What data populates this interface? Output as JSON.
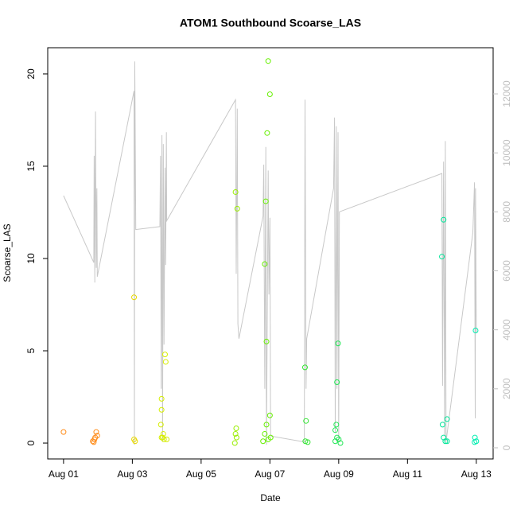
{
  "chart_data": {
    "type": "scatter",
    "title": "ATOM1 Southbound Scoarse_LAS",
    "xlabel": "Date",
    "ylabel": "Scoarse_LAS",
    "xlim": [
      0.54,
      13.49
    ],
    "ylim": [
      -0.86,
      21.42
    ],
    "y2lim": [
      -378,
      13565
    ],
    "xticks": [
      {
        "value": 1,
        "label": "Aug 01"
      },
      {
        "value": 3,
        "label": "Aug 03"
      },
      {
        "value": 5,
        "label": "Aug 05"
      },
      {
        "value": 7,
        "label": "Aug 07"
      },
      {
        "value": 9,
        "label": "Aug 09"
      },
      {
        "value": 11,
        "label": "Aug 11"
      },
      {
        "value": 13,
        "label": "Aug 13"
      }
    ],
    "yticks": [
      0,
      5,
      10,
      15,
      20
    ],
    "y2ticks": [
      0,
      2000,
      4000,
      6000,
      8000,
      10000,
      12000
    ],
    "series": [
      {
        "type": "line",
        "axis": "y2",
        "color": "#c8c8c8",
        "x": [
          1.0,
          1.88,
          1.89,
          1.91,
          1.93,
          1.95,
          1.97,
          1.98,
          3.05,
          3.06,
          3.07,
          3.08,
          3.1,
          3.8,
          3.82,
          3.84,
          3.86,
          3.88,
          3.9,
          3.92,
          3.95,
          3.97,
          3.99,
          4.0,
          6.0,
          6.02,
          6.05,
          6.07,
          6.1,
          6.8,
          6.82,
          6.85,
          6.88,
          6.9,
          6.95,
          6.97,
          7.0,
          7.02,
          8.0,
          8.02,
          8.05,
          8.07,
          8.85,
          8.88,
          8.9,
          8.93,
          8.95,
          8.98,
          9.0,
          9.02,
          12.0,
          12.02,
          12.05,
          12.08,
          12.1,
          12.12,
          12.9,
          12.95,
          12.97,
          12.98,
          13.0
        ],
        "values": [
          8550,
          6280,
          9900,
          5600,
          11400,
          6100,
          8800,
          5800,
          12100,
          100,
          13100,
          11600,
          7400,
          7500,
          9900,
          2000,
          10600,
          200,
          10300,
          3500,
          9500,
          6200,
          10700,
          7700,
          11800,
          5900,
          11500,
          4200,
          3700,
          7850,
          9600,
          2000,
          10200,
          100,
          9400,
          5200,
          7800,
          400,
          200,
          11800,
          2000,
          3700,
          8800,
          11200,
          500,
          10900,
          2000,
          10700,
          200,
          8000,
          9300,
          2100,
          9700,
          400,
          10400,
          200,
          7300,
          9000,
          1000,
          8800,
          3900
        ]
      },
      {
        "color": "#ff8c1a",
        "x": [
          1.0,
          1.85,
          1.9,
          1.92,
          1.95,
          1.98,
          1.88
        ],
        "values": [
          0.6,
          0.1,
          0.2,
          0.3,
          0.6,
          0.4,
          0.05
        ]
      },
      {
        "color": "#e8d800",
        "x": [
          3.05,
          3.05,
          3.08
        ],
        "values": [
          7.9,
          0.2,
          0.1
        ]
      },
      {
        "color": "#d6ee00",
        "x": [
          3.85,
          3.85,
          3.83,
          3.9,
          3.95,
          3.97,
          3.88,
          3.92,
          4.0,
          3.85
        ],
        "values": [
          2.4,
          1.8,
          1.0,
          0.5,
          4.8,
          4.4,
          0.3,
          0.2,
          0.2,
          0.3
        ]
      },
      {
        "color": "#99ee00",
        "x": [
          6.0,
          6.05,
          6.02,
          6.0,
          6.03,
          5.98
        ],
        "values": [
          13.6,
          12.7,
          0.8,
          0.5,
          0.3,
          0.0
        ]
      },
      {
        "color": "#66f000",
        "x": [
          6.95,
          7.0,
          6.92,
          6.88,
          6.85,
          6.9,
          7.0,
          6.9,
          6.85,
          6.95,
          7.02,
          6.8
        ],
        "values": [
          20.7,
          18.9,
          16.8,
          13.1,
          9.7,
          5.5,
          1.5,
          1.0,
          0.5,
          0.2,
          0.3,
          0.1
        ]
      },
      {
        "color": "#33e633",
        "x": [
          8.02,
          8.05,
          8.03,
          8.1
        ],
        "values": [
          4.1,
          1.2,
          0.1,
          0.05
        ]
      },
      {
        "color": "#22e655",
        "x": [
          8.98,
          8.95,
          8.93,
          8.9,
          8.95,
          9.0,
          8.9,
          9.05
        ],
        "values": [
          5.4,
          3.3,
          1.0,
          0.7,
          0.3,
          0.2,
          0.1,
          0.0
        ]
      },
      {
        "color": "#00e699",
        "x": [
          12.05,
          12.0,
          12.02,
          12.15,
          12.05,
          12.1,
          12.15
        ],
        "values": [
          12.1,
          10.1,
          1.0,
          1.3,
          0.3,
          0.1,
          0.1
        ]
      },
      {
        "color": "#00eeb0",
        "x": [
          12.98,
          12.96,
          13.0,
          12.95
        ],
        "values": [
          6.1,
          0.3,
          0.1,
          0.05
        ]
      }
    ]
  }
}
